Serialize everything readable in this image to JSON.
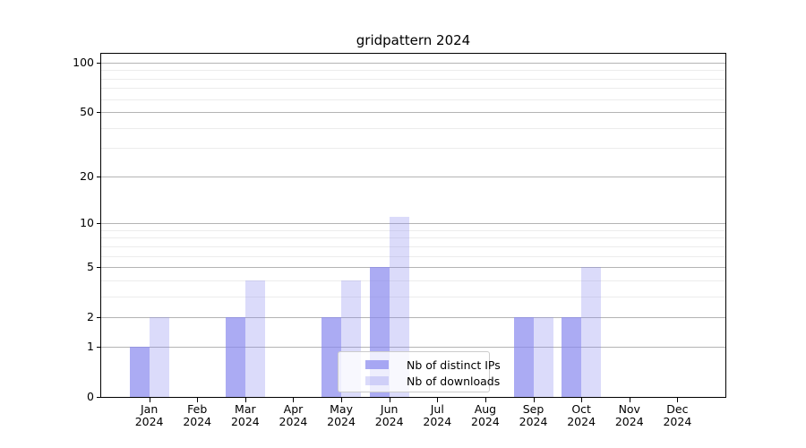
{
  "title": "gridpattern 2024",
  "chart_data": {
    "type": "bar",
    "title": "gridpattern 2024",
    "categories": [
      "Jan 2024",
      "Feb 2024",
      "Mar 2024",
      "Apr 2024",
      "May 2024",
      "Jun 2024",
      "Jul 2024",
      "Aug 2024",
      "Sep 2024",
      "Oct 2024",
      "Nov 2024",
      "Dec 2024"
    ],
    "series": [
      {
        "name": "Nb of distinct IPs",
        "color": "rgba(136,136,238,0.7)",
        "values": [
          1,
          0,
          2,
          0,
          2,
          5,
          0,
          0,
          2,
          2,
          0,
          0
        ]
      },
      {
        "name": "Nb of downloads",
        "color": "rgba(136,136,238,0.3)",
        "values": [
          2,
          0,
          4,
          0,
          4,
          11,
          0,
          0,
          2,
          5,
          0,
          0
        ]
      }
    ],
    "xlabel": "",
    "ylabel": "",
    "yscale": "log1p",
    "ylim": [
      0,
      113
    ],
    "y_major_ticks": [
      0,
      1,
      2,
      5,
      10,
      20,
      50,
      100
    ],
    "y_tick_labels": [
      "0",
      "1",
      "2",
      "5",
      "10",
      "20",
      "50",
      "100"
    ],
    "y_minor_gridlines": [
      3,
      4,
      6,
      7,
      8,
      9,
      30,
      40,
      60,
      70,
      80,
      90
    ],
    "grid": true,
    "legend_position": "lower center"
  },
  "colors": {
    "bar_base": "#8888ee",
    "major_grid": "#b4b4b4",
    "minor_grid": "#ececec",
    "spine": "#000000",
    "legend_border": "#cccccc",
    "text": "#000000"
  }
}
